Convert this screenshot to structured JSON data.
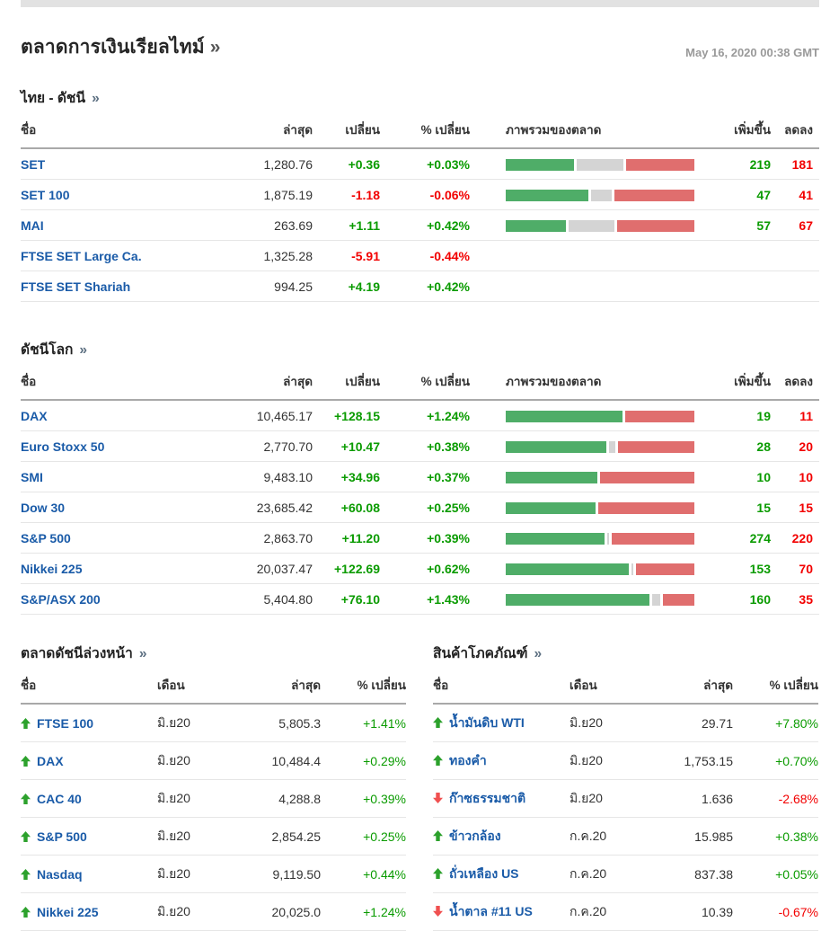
{
  "ui": {
    "arrow": "»"
  },
  "colors": {
    "positive_text": "#0a9b00",
    "negative_text": "#f20000",
    "bar_green": "#4fad68",
    "bar_gray": "#d4d4d4",
    "bar_red": "#e06e6e",
    "link_blue": "#1a5ba8",
    "timestamp_gray": "#999999"
  },
  "page": {
    "title": "ตลาดการเงินเรียลไทม์",
    "timestamp": "May 16, 2020 00:38 GMT"
  },
  "labels": {
    "name": "ชื่อ",
    "last": "ล่าสุด",
    "change": "เปลี่ยน",
    "pct_change": "% เปลี่ยน",
    "overview": "ภาพรวมของตลาด",
    "advancers": "เพิ่มขึ้น",
    "decliners": "ลดลง",
    "month": "เดือน"
  },
  "thai_indices": {
    "title": "ไทย - ดัชนี",
    "rows": [
      {
        "name": "SET",
        "last": "1,280.76",
        "change": "+0.36",
        "pct": "+0.03%",
        "bar": {
          "green": 36,
          "gray": 25,
          "red": 36
        },
        "adv": "219",
        "dec": "181"
      },
      {
        "name": "SET 100",
        "last": "1,875.19",
        "change": "-1.18",
        "pct": "-0.06%",
        "bar": {
          "green": 44,
          "gray": 11,
          "red": 42
        },
        "adv": "47",
        "dec": "41"
      },
      {
        "name": "MAI",
        "last": "263.69",
        "change": "+1.11",
        "pct": "+0.42%",
        "bar": {
          "green": 32,
          "gray": 24,
          "red": 41
        },
        "adv": "57",
        "dec": "67"
      },
      {
        "name": "FTSE SET Large Ca.",
        "last": "1,325.28",
        "change": "-5.91",
        "pct": "-0.44%",
        "bar": null,
        "adv": "",
        "dec": ""
      },
      {
        "name": "FTSE SET Shariah",
        "last": "994.25",
        "change": "+4.19",
        "pct": "+0.42%",
        "bar": null,
        "adv": "",
        "dec": ""
      }
    ]
  },
  "world_indices": {
    "title": "ดัชนีโลก",
    "rows": [
      {
        "name": "DAX",
        "last": "10,465.17",
        "change": "+128.15",
        "pct": "+1.24%",
        "bar": {
          "green": 62,
          "gray": 0,
          "red": 37
        },
        "adv": "19",
        "dec": "11"
      },
      {
        "name": "Euro Stoxx 50",
        "last": "2,770.70",
        "change": "+10.47",
        "pct": "+0.38%",
        "bar": {
          "green": 54,
          "gray": 3,
          "red": 41
        },
        "adv": "28",
        "dec": "20"
      },
      {
        "name": "SMI",
        "last": "9,483.10",
        "change": "+34.96",
        "pct": "+0.37%",
        "bar": {
          "green": 49,
          "gray": 0,
          "red": 50
        },
        "adv": "10",
        "dec": "10"
      },
      {
        "name": "Dow 30",
        "last": "23,685.42",
        "change": "+60.08",
        "pct": "+0.25%",
        "bar": {
          "green": 48,
          "gray": 0,
          "red": 51
        },
        "adv": "15",
        "dec": "15"
      },
      {
        "name": "S&P 500",
        "last": "2,863.70",
        "change": "+11.20",
        "pct": "+0.39%",
        "bar": {
          "green": 53,
          "gray": 1,
          "red": 44
        },
        "adv": "274",
        "dec": "220"
      },
      {
        "name": "Nikkei 225",
        "last": "20,037.47",
        "change": "+122.69",
        "pct": "+0.62%",
        "bar": {
          "green": 66,
          "gray": 1,
          "red": 31
        },
        "adv": "153",
        "dec": "70"
      },
      {
        "name": "S&P/ASX 200",
        "last": "5,404.80",
        "change": "+76.10",
        "pct": "+1.43%",
        "bar": {
          "green": 77,
          "gray": 4,
          "red": 17
        },
        "adv": "160",
        "dec": "35"
      }
    ]
  },
  "futures": {
    "title": "ตลาดดัชนีล่วงหน้า",
    "rows": [
      {
        "dir": "up",
        "name": "FTSE 100",
        "month": "มิ.ย20",
        "last": "5,805.3",
        "pct": "+1.41%"
      },
      {
        "dir": "up",
        "name": "DAX",
        "month": "มิ.ย20",
        "last": "10,484.4",
        "pct": "+0.29%"
      },
      {
        "dir": "up",
        "name": "CAC 40",
        "month": "มิ.ย20",
        "last": "4,288.8",
        "pct": "+0.39%"
      },
      {
        "dir": "up",
        "name": "S&P 500",
        "month": "มิ.ย20",
        "last": "2,854.25",
        "pct": "+0.25%"
      },
      {
        "dir": "up",
        "name": "Nasdaq",
        "month": "มิ.ย20",
        "last": "9,119.50",
        "pct": "+0.44%"
      },
      {
        "dir": "up",
        "name": "Nikkei 225",
        "month": "มิ.ย20",
        "last": "20,025.0",
        "pct": "+1.24%"
      }
    ]
  },
  "commodities": {
    "title": "สินค้าโภคภัณฑ์",
    "rows": [
      {
        "dir": "up",
        "name": "น้ำมันดิบ WTI",
        "month": "มิ.ย20",
        "last": "29.71",
        "pct": "+7.80%"
      },
      {
        "dir": "up",
        "name": "ทองคำ",
        "month": "มิ.ย20",
        "last": "1,753.15",
        "pct": "+0.70%"
      },
      {
        "dir": "down",
        "name": "ก๊าซธรรมชาติ",
        "month": "มิ.ย20",
        "last": "1.636",
        "pct": "-2.68%"
      },
      {
        "dir": "up",
        "name": "ข้าวกล้อง",
        "month": "ก.ค.20",
        "last": "15.985",
        "pct": "+0.38%"
      },
      {
        "dir": "up",
        "name": "ถั่วเหลือง US",
        "month": "ก.ค.20",
        "last": "837.38",
        "pct": "+0.05%"
      },
      {
        "dir": "down",
        "name": "น้ำตาล #11 US",
        "month": "ก.ค.20",
        "last": "10.39",
        "pct": "-0.67%"
      }
    ]
  }
}
